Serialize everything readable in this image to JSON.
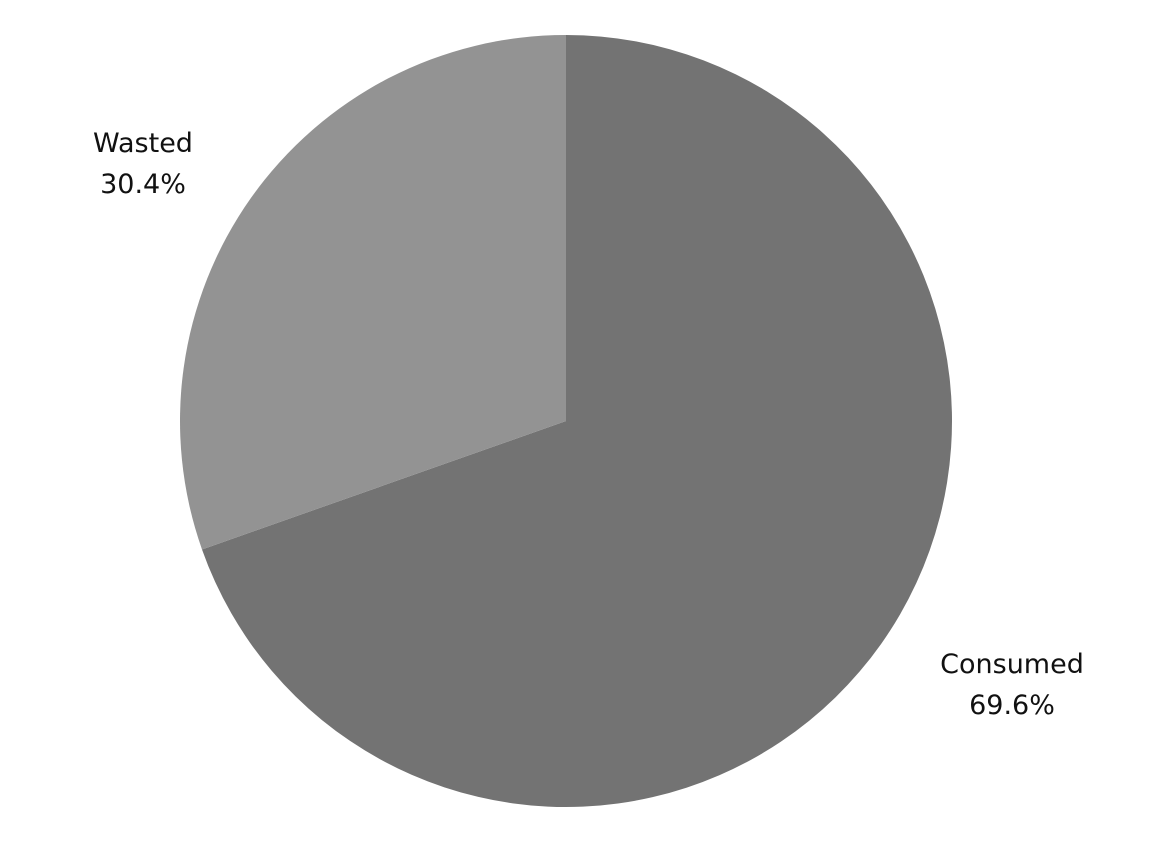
{
  "chart_data": {
    "type": "pie",
    "title": "",
    "slices": [
      {
        "label": "Consumed",
        "value": 69.6,
        "value_label": "69.6%",
        "color": "#737373"
      },
      {
        "label": "Wasted",
        "value": 30.4,
        "value_label": "30.4%",
        "color": "#939393"
      }
    ],
    "start_angle_deg": 0,
    "direction": "clockwise",
    "legend": "none",
    "labels": "outside"
  }
}
